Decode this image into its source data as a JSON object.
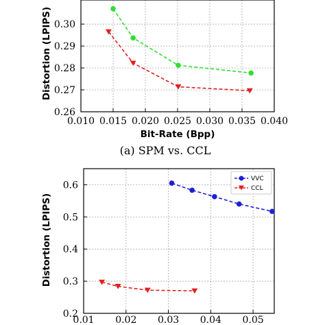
{
  "chart_data": [
    {
      "type": "line",
      "caption": "(a) SPM vs. CCL",
      "xlabel": "Bit-Rate (Bpp)",
      "ylabel": "Distortion (LPIPS)",
      "xlim": [
        0.01,
        0.04
      ],
      "ylim": [
        0.26,
        0.31
      ],
      "xticks": [
        "0.010",
        "0.015",
        "0.020",
        "0.025",
        "0.030",
        "0.035",
        "0.040"
      ],
      "yticks": [
        "0.26",
        "0.27",
        "0.28",
        "0.29",
        "0.30"
      ],
      "grid": true,
      "legend": null,
      "series": [
        {
          "color": "#33dd33",
          "marker": "circle",
          "x": [
            0.015,
            0.0181,
            0.0251,
            0.0364
          ],
          "y": [
            0.307,
            0.2937,
            0.2812,
            0.2777
          ]
        },
        {
          "color": "#dd2222",
          "marker": "triangle-down",
          "x": [
            0.0143,
            0.0181,
            0.0251,
            0.0362
          ],
          "y": [
            0.2965,
            0.2822,
            0.2714,
            0.2696
          ]
        }
      ]
    },
    {
      "type": "line",
      "caption": "",
      "xlabel": "",
      "ylabel": "Distortion (LPIPS)",
      "xlim": [
        0.01,
        0.055
      ],
      "ylim": [
        0.2,
        0.65
      ],
      "xticks": [
        "0.01",
        "0.02",
        "0.03",
        "0.04",
        "0.05"
      ],
      "yticks": [
        "0.2",
        "0.3",
        "0.4",
        "0.5",
        "0.6"
      ],
      "grid": true,
      "legend": "top-right",
      "series": [
        {
          "name": "VVC",
          "color": "#1f1fd6",
          "marker": "circle",
          "x": [
            0.0308,
            0.0356,
            0.0409,
            0.0467,
            0.0545
          ],
          "y": [
            0.605,
            0.583,
            0.563,
            0.54,
            0.517
          ]
        },
        {
          "name": "CCL",
          "color": "#dd2222",
          "marker": "triangle-down",
          "x": [
            0.0143,
            0.0181,
            0.0251,
            0.0362
          ],
          "y": [
            0.297,
            0.284,
            0.272,
            0.27
          ]
        }
      ]
    }
  ]
}
